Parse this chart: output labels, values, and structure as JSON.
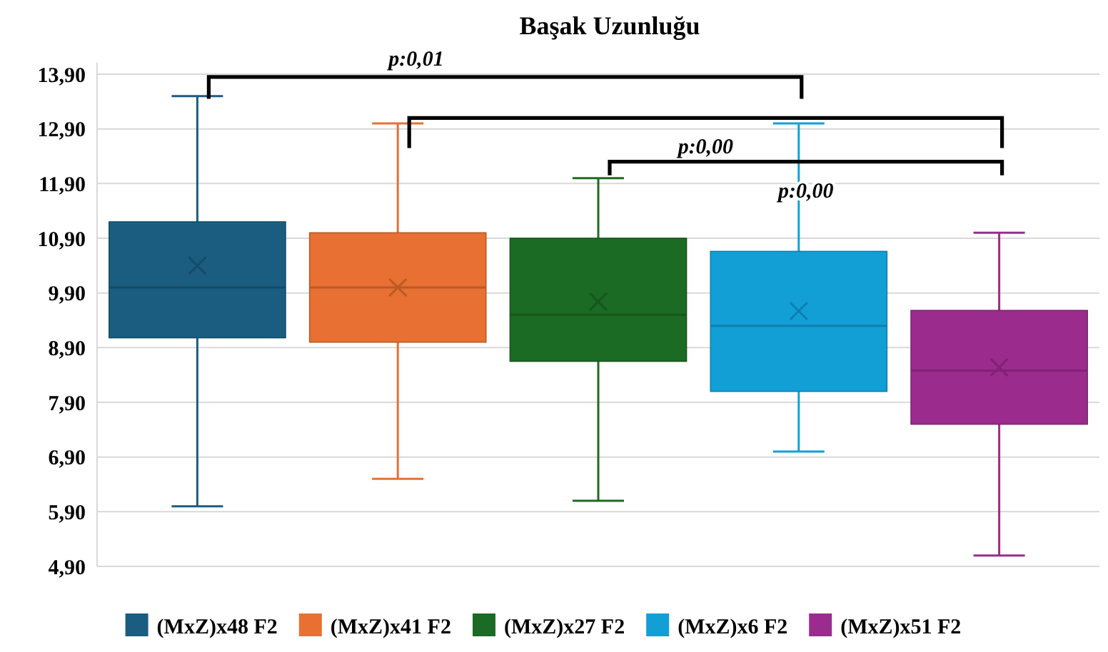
{
  "chart_data": {
    "type": "box",
    "title": "Başak Uzunluğu",
    "categories": [
      null
    ],
    "ylim": [
      4.9,
      13.9
    ],
    "yticks": [
      {
        "value": 4.9,
        "label": "4,90"
      },
      {
        "value": 5.9,
        "label": "5,90"
      },
      {
        "value": 6.9,
        "label": "6,90"
      },
      {
        "value": 7.9,
        "label": "7,90"
      },
      {
        "value": 8.9,
        "label": "8,90"
      },
      {
        "value": 9.9,
        "label": "9,90"
      },
      {
        "value": 10.9,
        "label": "10,90"
      },
      {
        "value": 11.9,
        "label": "11,90"
      },
      {
        "value": 12.9,
        "label": "12,90"
      },
      {
        "value": 13.9,
        "label": "13,90"
      }
    ],
    "grid": "y",
    "legend": "bottom",
    "series": [
      {
        "name": "(MxZ)x48 F2",
        "color": "#1a5d80",
        "boxes": [
          {
            "low": 6.0,
            "q1": 9.08,
            "median": 10.0,
            "q3": 11.2,
            "high": 13.5,
            "mean": 10.4
          }
        ]
      },
      {
        "name": "(MxZ)x41 F2",
        "color": "#e77032",
        "boxes": [
          {
            "low": 6.5,
            "q1": 9.0,
            "median": 10.0,
            "q3": 11.0,
            "high": 13.0,
            "mean": 10.0
          }
        ]
      },
      {
        "name": "(MxZ)x27 F2",
        "color": "#1c6b24",
        "boxes": [
          {
            "low": 6.1,
            "q1": 8.65,
            "median": 9.5,
            "q3": 10.9,
            "high": 12.0,
            "mean": 9.74
          }
        ]
      },
      {
        "name": "(MxZ)x6 F2",
        "color": "#119fd6",
        "boxes": [
          {
            "low": 7.0,
            "q1": 8.1,
            "median": 9.3,
            "q3": 10.66,
            "high": 13.0,
            "mean": 9.57
          }
        ]
      },
      {
        "name": "(MxZ)x51 F2",
        "color": "#9c2b8e",
        "boxes": [
          {
            "low": 5.1,
            "q1": 7.5,
            "median": 8.48,
            "q3": 9.58,
            "high": 11.0,
            "mean": 8.54
          }
        ]
      }
    ],
    "annotations": [
      "p:0,01",
      "p:0,00",
      "p:0,00"
    ]
  }
}
